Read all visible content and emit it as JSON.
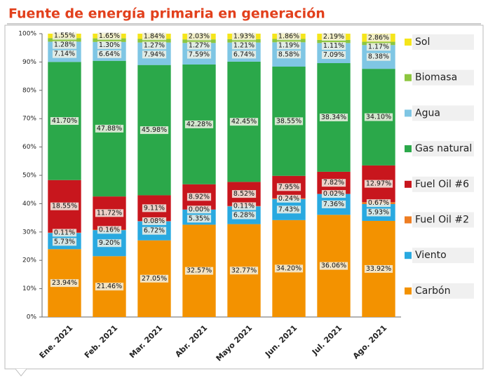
{
  "chart_data": {
    "type": "stacked_bar",
    "title": "Fuente de energía primaria en generación",
    "categories": [
      "Ene. 2021",
      "Feb. 2021",
      "Mar. 2021",
      "Abr. 2021",
      "Mayo 2021",
      "Jun. 2021",
      "Jul. 2021",
      "Ago. 2021"
    ],
    "ylim": [
      0,
      100
    ],
    "yticks": [
      {
        "value": 0,
        "label": "0%"
      },
      {
        "value": 10,
        "label": "10%"
      },
      {
        "value": 20,
        "label": "20%"
      },
      {
        "value": 30,
        "label": "30%"
      },
      {
        "value": 40,
        "label": "40%"
      },
      {
        "value": 50,
        "label": "50%"
      },
      {
        "value": 60,
        "label": "60%"
      },
      {
        "value": 70,
        "label": "70%"
      },
      {
        "value": 80,
        "label": "80%"
      },
      {
        "value": 90,
        "label": "90%"
      },
      {
        "value": 100,
        "label": "100%"
      }
    ],
    "series": [
      {
        "name": "Carbón",
        "color": "#f39200",
        "values": [
          23.94,
          21.46,
          27.05,
          32.57,
          32.77,
          34.2,
          36.06,
          33.92
        ],
        "value_labels": [
          "23.94%",
          "21.46%",
          "27.05%",
          "32.57%",
          "32.77%",
          "34.20%",
          "36.06%",
          "33.92%"
        ]
      },
      {
        "name": "Viento",
        "color": "#29a9e0",
        "values": [
          5.73,
          9.2,
          6.72,
          5.35,
          6.28,
          7.43,
          7.36,
          5.93
        ],
        "value_labels": [
          "5.73%",
          "9.20%",
          "6.72%",
          "5.35%",
          "6.28%",
          "7.43%",
          "7.36%",
          "5.93%"
        ]
      },
      {
        "name": "Fuel Oil #2",
        "color": "#ee7d22",
        "values": [
          0.11,
          0.16,
          0.08,
          0.0,
          0.11,
          0.24,
          0.02,
          0.67
        ],
        "value_labels": [
          "0.11%",
          "0.16%",
          "0.08%",
          "0.00%",
          "0.11%",
          "0.24%",
          "0.02%",
          "0.67%"
        ]
      },
      {
        "name": "Fuel Oil #6",
        "color": "#c8161d",
        "values": [
          18.55,
          11.72,
          9.11,
          8.92,
          8.52,
          7.95,
          7.82,
          12.97
        ],
        "value_labels": [
          "18.55%",
          "11.72%",
          "9.11%",
          "8.92%",
          "8.52%",
          "7.95%",
          "7.82%",
          "12.97%"
        ]
      },
      {
        "name": "Gas natural",
        "color": "#2ba84a",
        "values": [
          41.7,
          47.88,
          45.98,
          42.28,
          42.45,
          38.55,
          38.34,
          34.1
        ],
        "value_labels": [
          "41.70%",
          "47.88%",
          "45.98%",
          "42.28%",
          "42.45%",
          "38.55%",
          "38.34%",
          "34.10%"
        ]
      },
      {
        "name": "Agua",
        "color": "#7fc6e4",
        "values": [
          7.14,
          6.64,
          7.94,
          7.59,
          6.74,
          8.58,
          7.09,
          8.38
        ],
        "value_labels": [
          "7.14%",
          "6.64%",
          "7.94%",
          "7.59%",
          "6.74%",
          "8.58%",
          "7.09%",
          "8.38%"
        ]
      },
      {
        "name": "Biomasa",
        "color": "#8dc63f",
        "values": [
          1.28,
          1.3,
          1.27,
          1.27,
          1.21,
          1.19,
          1.11,
          1.17
        ],
        "value_labels": [
          "1.28%",
          "1.30%",
          "1.27%",
          "1.27%",
          "1.21%",
          "1.19%",
          "1.11%",
          "1.17%"
        ]
      },
      {
        "name": "Sol",
        "color": "#f5e51b",
        "values": [
          1.55,
          1.65,
          1.84,
          2.03,
          1.93,
          1.86,
          2.19,
          2.86
        ],
        "value_labels": [
          "1.55%",
          "1.65%",
          "1.84%",
          "2.03%",
          "1.93%",
          "1.86%",
          "2.19%",
          "2.86%"
        ]
      }
    ]
  }
}
